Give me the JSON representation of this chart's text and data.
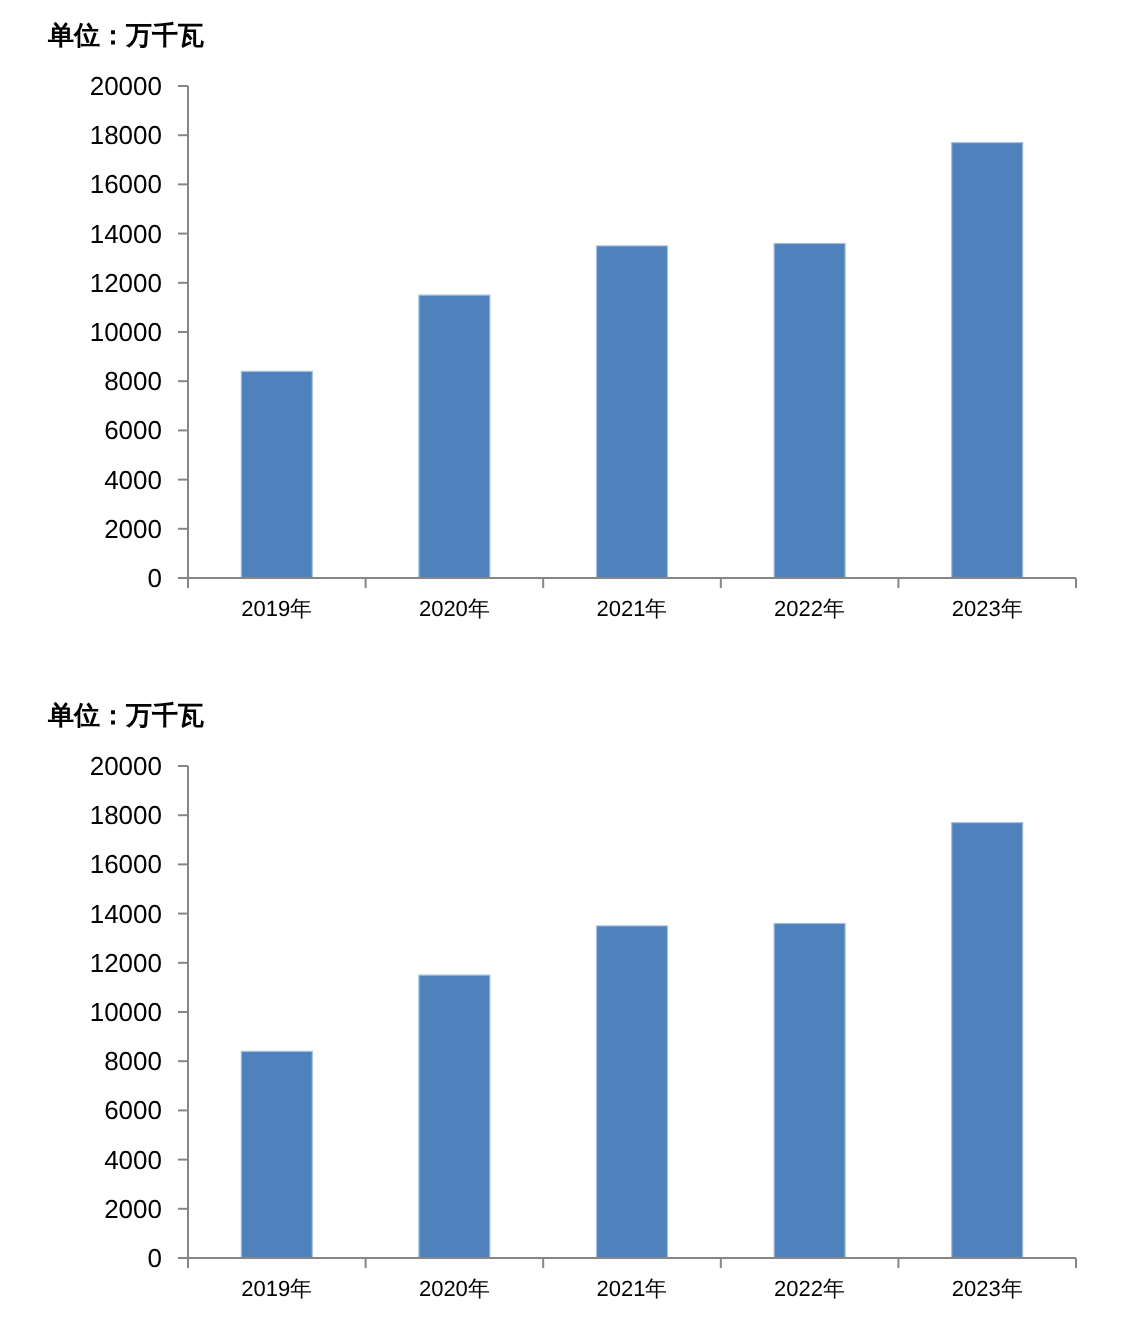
{
  "chart_data": [
    {
      "type": "bar",
      "ylabel": "单位：万千瓦",
      "categories": [
        "2019年",
        "2020年",
        "2021年",
        "2022年",
        "2023年"
      ],
      "values": [
        8400,
        11500,
        13500,
        13600,
        17700
      ],
      "color": "#4f81bd",
      "ylim": [
        0,
        20000
      ],
      "yticks": [
        0,
        2000,
        4000,
        6000,
        8000,
        10000,
        12000,
        14000,
        16000,
        18000,
        20000
      ]
    },
    {
      "type": "bar",
      "ylabel": "单位：万千瓦",
      "categories": [
        "2019年",
        "2020年",
        "2021年",
        "2022年",
        "2023年"
      ],
      "values": [
        8400,
        11500,
        13500,
        13600,
        17700
      ],
      "color": "#4f81bd",
      "ylim": [
        0,
        20000
      ],
      "yticks": [
        0,
        2000,
        4000,
        6000,
        8000,
        10000,
        12000,
        14000,
        16000,
        18000,
        20000
      ]
    }
  ]
}
